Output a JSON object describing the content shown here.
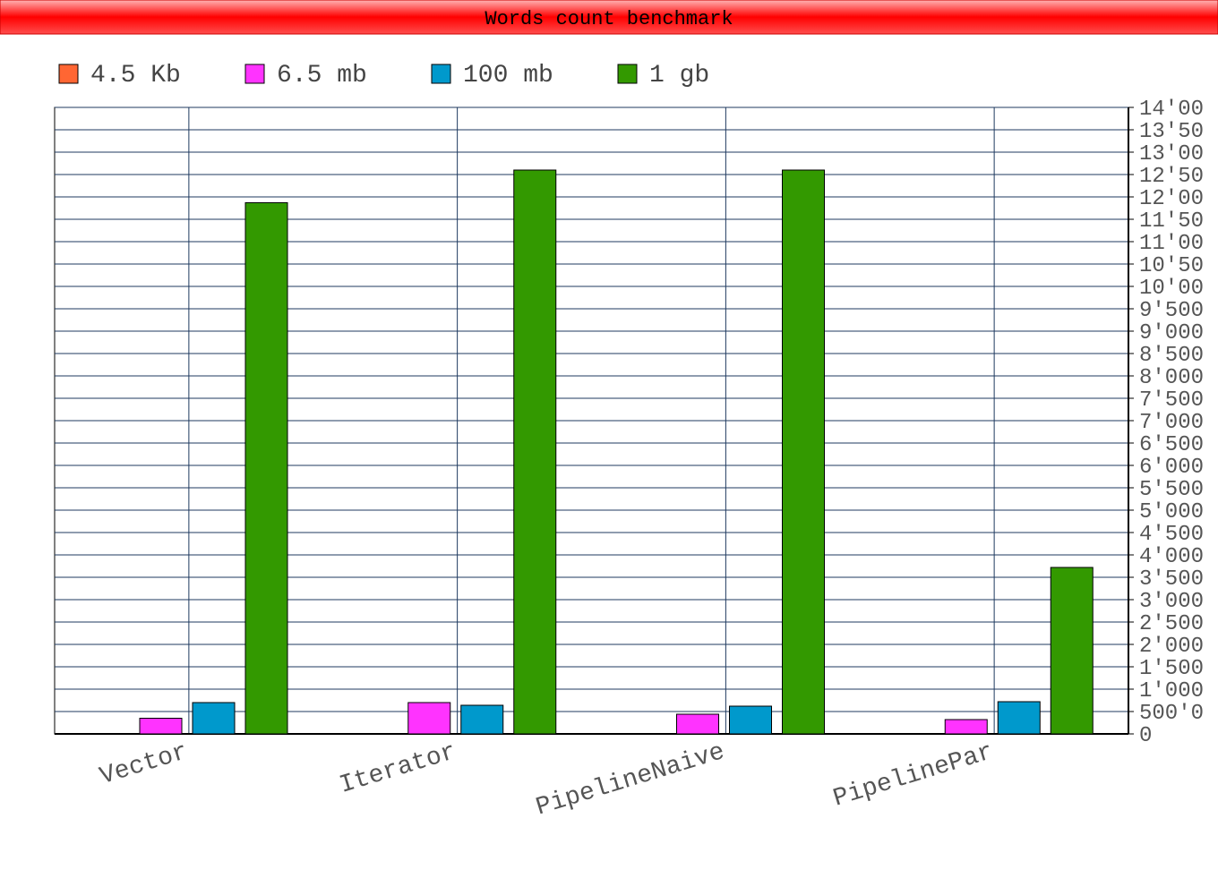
{
  "chart_data": {
    "type": "bar",
    "title": "Words count benchmark",
    "xlabel": "",
    "ylabel": "",
    "categories": [
      "Vector",
      "Iterator",
      "PipelineNaive",
      "PipelinePar"
    ],
    "series": [
      {
        "name": "4.5 Kb",
        "color": "#ff6633",
        "values": [
          0,
          0,
          0,
          0
        ]
      },
      {
        "name": "6.5 mb",
        "color": "#ff33ff",
        "values": [
          350,
          700,
          440,
          320
        ]
      },
      {
        "name": "100 mb",
        "color": "#0099cc",
        "values": [
          700,
          640,
          620,
          720
        ]
      },
      {
        "name": "1 gb",
        "color": "#339900",
        "values": [
          11870,
          12600,
          12600,
          3720
        ]
      }
    ],
    "ylim": [
      0,
      14000
    ],
    "ytick_step": 500,
    "ytick_labels": [
      "0",
      "500'0",
      "1'000",
      "1'500",
      "2'000",
      "2'500",
      "3'000",
      "3'500",
      "4'000",
      "4'500",
      "5'000",
      "5'500",
      "6'000",
      "6'500",
      "7'000",
      "7'500",
      "8'000",
      "8'500",
      "9'000",
      "9'500",
      "10'00",
      "10'50",
      "11'00",
      "11'50",
      "12'00",
      "12'50",
      "13'00",
      "13'50",
      "14'00"
    ],
    "grid": true,
    "legend_position": "top-left",
    "title_bar_color": "#ff0000"
  }
}
